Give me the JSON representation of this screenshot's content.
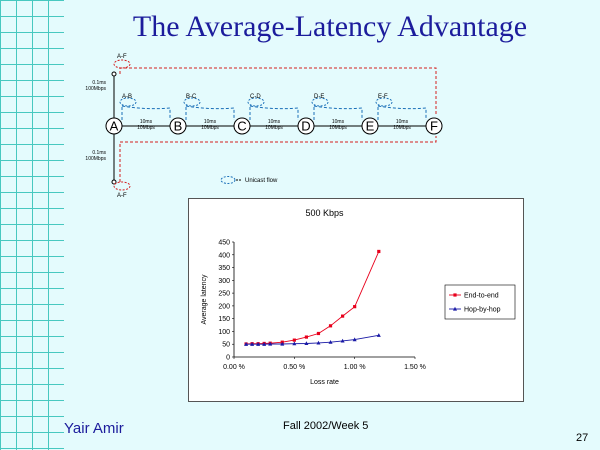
{
  "slide": {
    "title": "The Average-Latency Advantage",
    "author": "Yair Amir",
    "footer": "Fall 2002/Week 5",
    "page_number": "27"
  },
  "diagram": {
    "nodes": [
      "A",
      "B",
      "C",
      "D",
      "E",
      "F"
    ],
    "link_label": "10ms\n10Mbps",
    "access_link_label": "0.1ms\n100Mbps",
    "hop_flows": [
      "A-B",
      "B-C",
      "C-D",
      "D-E",
      "E-F"
    ],
    "end_flow": "A-F",
    "legend": "Unicast flow"
  },
  "chart_data": {
    "type": "line",
    "title": "500 Kbps",
    "xlabel": "Loss rate",
    "ylabel": "Average latency",
    "xlim": [
      0,
      1.5
    ],
    "ylim": [
      0,
      450
    ],
    "x_ticks": [
      "0.00 %",
      "0.50 %",
      "1.00 %",
      "1.50 %"
    ],
    "y_ticks": [
      "0",
      "50",
      "100",
      "150",
      "200",
      "250",
      "300",
      "350",
      "400",
      "450"
    ],
    "legend_position": "right",
    "series": [
      {
        "name": "End-to-end",
        "color": "#e8001c",
        "marker": "square",
        "x": [
          0.1,
          0.15,
          0.2,
          0.25,
          0.3,
          0.4,
          0.5,
          0.6,
          0.7,
          0.8,
          0.9,
          1.0,
          1.2
        ],
        "y": [
          51,
          52,
          52,
          53,
          54,
          58,
          66,
          78,
          92,
          122,
          160,
          197,
          413
        ]
      },
      {
        "name": "Hop-by-hop",
        "color": "#1a1aa6",
        "marker": "triangle",
        "x": [
          0.1,
          0.15,
          0.2,
          0.25,
          0.3,
          0.4,
          0.5,
          0.6,
          0.7,
          0.8,
          0.9,
          1.0,
          1.2
        ],
        "y": [
          50,
          50,
          50,
          50,
          51,
          51,
          52,
          53,
          55,
          58,
          63,
          68,
          85
        ]
      }
    ]
  }
}
